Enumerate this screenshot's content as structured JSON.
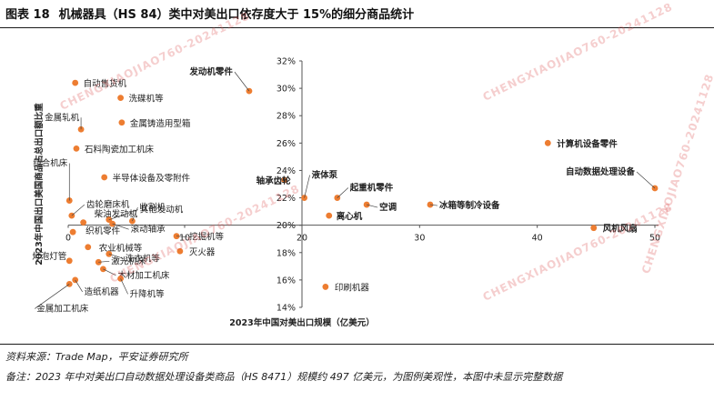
{
  "figure": {
    "number": "图表 18",
    "title": "机械器具（HS 84）类中对美出口依存度大于 15%的细分商品统计"
  },
  "footer": {
    "source": "资料来源：Trade Map，平安证券研究所",
    "note": "备注：2023 年中对美出口自动数据处理设备类商品（HS 8471）规模约 497 亿美元，为图例美观性，本图中未显示完整数据"
  },
  "watermark": "CHENGXIAOJIAO760-20241128",
  "colors": {
    "point": "#ED7D31",
    "axis": "#444444",
    "text": "#222222"
  },
  "chart_data": {
    "type": "scatter",
    "xlabel": "2023年中国对美出口规模（亿美元）",
    "ylabel": "2023年中国出口美国商品占总出口额比重",
    "xlim": [
      0,
      50
    ],
    "ylim": [
      14,
      32
    ],
    "x_ticks": [
      "0",
      "10",
      "20",
      "30",
      "40",
      "50"
    ],
    "y_ticks": [
      "14%",
      "16%",
      "18%",
      "20%",
      "22%",
      "24%",
      "26%",
      "28%",
      "30%",
      "32%"
    ],
    "points": [
      {
        "label": "自动售货机",
        "x": 0.6,
        "y": 30.4
      },
      {
        "label": "洗碟机等",
        "x": 4.5,
        "y": 29.3
      },
      {
        "label": "金属轧机",
        "x": 1.1,
        "y": 27.0
      },
      {
        "label": "金属铸造用型箱",
        "x": 4.6,
        "y": 27.5
      },
      {
        "label": "石料陶瓷加工机床",
        "x": 0.7,
        "y": 25.6
      },
      {
        "label": "组合机床",
        "x": 0.1,
        "y": 21.8
      },
      {
        "label": "半导体设备及零附件",
        "x": 3.1,
        "y": 23.5
      },
      {
        "label": "齿轮磨床机",
        "x": 0.3,
        "y": 20.7
      },
      {
        "label": "收割机",
        "x": 5.5,
        "y": 20.3
      },
      {
        "label": "柴油发动机",
        "x": 1.3,
        "y": 20.2
      },
      {
        "label": "其他发动机",
        "x": 3.5,
        "y": 20.4
      },
      {
        "label": "滚动轴承",
        "x": 3.8,
        "y": 20.1
      },
      {
        "label": "织机零件",
        "x": 0.4,
        "y": 19.5
      },
      {
        "label": "挖掘机等",
        "x": 9.3,
        "y": 19.2
      },
      {
        "label": "农业机械等",
        "x": 1.7,
        "y": 18.4
      },
      {
        "label": "灭火器",
        "x": 9.6,
        "y": 18.1
      },
      {
        "label": "灯泡灯管",
        "x": 0.1,
        "y": 17.4
      },
      {
        "label": "洗衣机等",
        "x": 3.5,
        "y": 17.9
      },
      {
        "label": "激光机床",
        "x": 2.6,
        "y": 17.3
      },
      {
        "label": "木材加工机床",
        "x": 3.0,
        "y": 16.8
      },
      {
        "label": "造纸机器",
        "x": 0.6,
        "y": 16.0
      },
      {
        "label": "升降机等",
        "x": 4.5,
        "y": 16.1
      },
      {
        "label": "金属加工机床",
        "x": 0.1,
        "y": 15.7
      },
      {
        "label": "发动机零件",
        "x": 15.5,
        "y": 29.8
      },
      {
        "label": "轴承齿轮",
        "x": 18.5,
        "y": 23.3
      },
      {
        "label": "液体泵",
        "x": 20.2,
        "y": 22.0
      },
      {
        "label": "起重机零件",
        "x": 23.0,
        "y": 22.0
      },
      {
        "label": "空调",
        "x": 25.5,
        "y": 21.5
      },
      {
        "label": "离心机",
        "x": 22.3,
        "y": 20.7
      },
      {
        "label": "冰箱等制冷设备",
        "x": 30.9,
        "y": 21.5
      },
      {
        "label": "印刷机器",
        "x": 22.0,
        "y": 15.5
      },
      {
        "label": "计算机设备零件",
        "x": 40.9,
        "y": 26.0
      },
      {
        "label": "风机风扇",
        "x": 44.8,
        "y": 19.8
      },
      {
        "label": "自动数据处理设备",
        "x": 50.0,
        "y": 22.7
      }
    ]
  }
}
